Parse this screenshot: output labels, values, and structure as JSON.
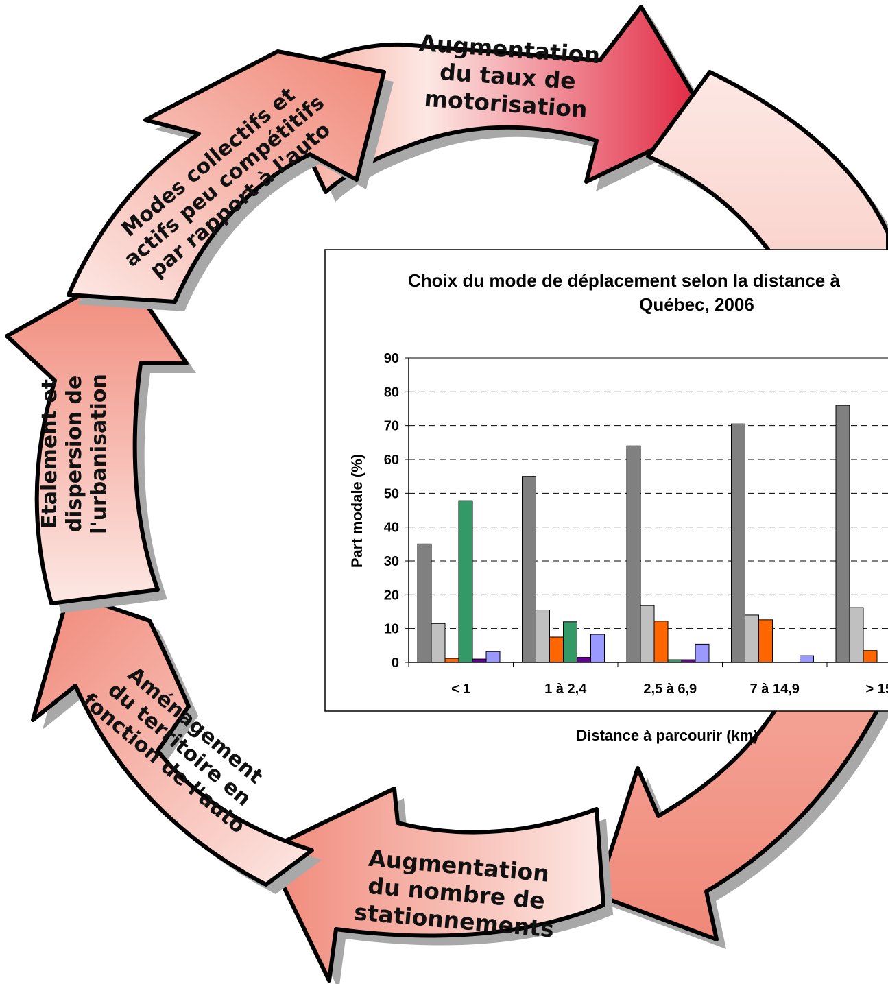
{
  "cycle": {
    "steps": [
      {
        "lines": [
          "Augmentation",
          "du taux de",
          "motorisation"
        ]
      },
      {
        "lines": [
          "Augmentation",
          "du nombre de",
          "stationnements"
        ]
      },
      {
        "lines": [
          "Aménagement",
          "du territoire en",
          "fonction de l'auto"
        ]
      },
      {
        "lines": [
          "Étalement et",
          "dispersion de",
          "l'urbanisation"
        ]
      },
      {
        "lines": [
          "Modes collectifs et",
          "actifs peu compétitifs",
          "par rapport à l'auto"
        ]
      }
    ],
    "colors": {
      "arrow_light": "#fde8e4",
      "arrow_mid": "#f08878",
      "arrow_dark": "#e0203c",
      "shadow": "#a8a8a8",
      "outline": "#000000"
    }
  },
  "chart_data": {
    "type": "bar",
    "title_line1": "Choix du mode de déplacement selon la distance à",
    "title_line2": "Québec, 2006",
    "xlabel": "Distance à parcourir (km)",
    "ylabel": "Part modale (%)",
    "ylim": [
      0,
      90
    ],
    "yticks": [
      0,
      10,
      20,
      30,
      40,
      50,
      60,
      70,
      80,
      90
    ],
    "grid": "dashed horizontal",
    "categories": [
      "< 1",
      "1 à 2,4",
      "2,5 à 6,9",
      "7 à 14,9",
      "> 15"
    ],
    "series": [
      {
        "color": "#808080",
        "values": [
          35,
          55,
          64,
          70.5,
          76
        ]
      },
      {
        "color": "#c0c0c0",
        "values": [
          11.5,
          15.5,
          16.8,
          14,
          16.2
        ]
      },
      {
        "color": "#ff6600",
        "values": [
          1.2,
          7.5,
          12.2,
          12.6,
          3.5
        ]
      },
      {
        "color": "#339966",
        "values": [
          47.8,
          12,
          0.8,
          0,
          0
        ]
      },
      {
        "color": "#660099",
        "values": [
          1,
          1.5,
          0.8,
          0,
          0
        ]
      },
      {
        "color": "#9999ff",
        "values": [
          3.2,
          8.3,
          5.4,
          2,
          0
        ]
      }
    ]
  }
}
